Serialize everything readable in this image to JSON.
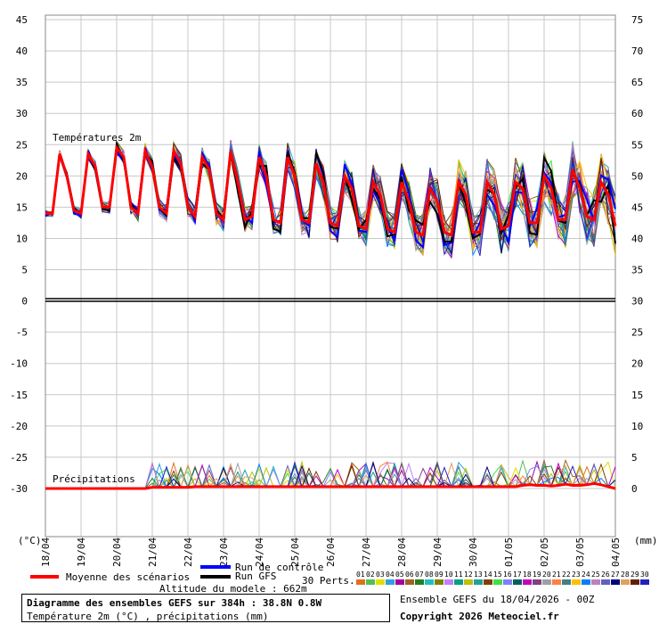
{
  "chart_data": {
    "type": "line",
    "left_axis_ticks": [
      45,
      40,
      35,
      30,
      25,
      20,
      15,
      10,
      5,
      0,
      -5,
      -10,
      -15,
      -20,
      -25,
      -30
    ],
    "right_axis_ticks": [
      75,
      70,
      65,
      60,
      55,
      50,
      45,
      40,
      35,
      30,
      25,
      20,
      15,
      10,
      5,
      0
    ],
    "left_unit": "(°C)",
    "right_unit": "(mm)",
    "x_labels": [
      "18/04",
      "19/04",
      "20/04",
      "21/04",
      "22/04",
      "23/04",
      "24/04",
      "25/04",
      "26/04",
      "27/04",
      "28/04",
      "29/04",
      "30/04",
      "01/05",
      "02/05",
      "03/05",
      "04/05"
    ],
    "temp_label": "Températures 2m",
    "precip_label": "Précipitations",
    "temp_mean": [
      14,
      14,
      23.5,
      20,
      14.5,
      14,
      23.5,
      21.5,
      15,
      15,
      24.5,
      23,
      15,
      14,
      24,
      21.5,
      15,
      14,
      24,
      22,
      15,
      13.5,
      23,
      21,
      14,
      13,
      24,
      19,
      13,
      13.5,
      23,
      20,
      13,
      12.5,
      23,
      20,
      13,
      12.5,
      22,
      19,
      12.5,
      12,
      20,
      18,
      12,
      11.5,
      19,
      17,
      11.5,
      11,
      19,
      16,
      11,
      10.5,
      18,
      16,
      11,
      10.5,
      19,
      17,
      11,
      11,
      19,
      17,
      11.5,
      12,
      19,
      18,
      12.5,
      12.5,
      20,
      18,
      13,
      13,
      21,
      18,
      13.5,
      13,
      19,
      17,
      12
    ],
    "precip_mean": [
      0,
      0,
      0,
      0,
      0,
      0,
      0,
      0,
      0,
      0,
      0,
      0,
      0,
      0,
      0,
      0.2,
      0.2,
      0.2,
      0.2,
      0.2,
      0.2,
      0.3,
      0.3,
      0.3,
      0.3,
      0.3,
      0.3,
      0.3,
      0.3,
      0.3,
      0.3,
      0.3,
      0.3,
      0.3,
      0.3,
      0.3,
      0.3,
      0.3,
      0.3,
      0.3,
      0.3,
      0.3,
      0.3,
      0.3,
      0.3,
      0.3,
      0.3,
      0.3,
      0.3,
      0.3,
      0.3,
      0.3,
      0.3,
      0.3,
      0.3,
      0.3,
      0.3,
      0.3,
      0.3,
      0.3,
      0.3,
      0.3,
      0.3,
      0.3,
      0.3,
      0.3,
      0.3,
      0.5,
      0.6,
      0.5,
      0.5,
      0.4,
      0.5,
      0.7,
      0.5,
      0.5,
      0.6,
      0.8,
      0.6,
      0.3,
      0
    ],
    "ensemble_colors": [
      "#e07020",
      "#50c050",
      "#e0e000",
      "#30a0e0",
      "#a000a0",
      "#a06020",
      "#208020",
      "#20c0c0",
      "#808000",
      "#c080ff",
      "#00a080",
      "#c0c000",
      "#20a0a0",
      "#804000",
      "#40e040",
      "#8080ff",
      "#006060",
      "#c000c0",
      "#804080",
      "#a0a0a0",
      "#ff8040",
      "#408080",
      "#ffc000",
      "#0080ff",
      "#c080c0",
      "#6060c0",
      "#000080",
      "#e0a060",
      "#602000",
      "#2020c0"
    ],
    "legend": {
      "mean": "Moyenne des scénarios",
      "control": "Run de contrôle",
      "gfs": "Run GFS",
      "perts": "30 Perts.",
      "pert_numbers": [
        "01",
        "02",
        "03",
        "04",
        "05",
        "06",
        "07",
        "08",
        "09",
        "10",
        "11",
        "12",
        "13",
        "14",
        "15",
        "16",
        "17",
        "18",
        "19",
        "20",
        "21",
        "22",
        "23",
        "24",
        "25",
        "26",
        "27",
        "28",
        "29",
        "30"
      ],
      "altitude": "Altitude du modele : 662m"
    }
  },
  "info": {
    "line1": "Diagramme des ensembles GEFS sur 384h : 38.8N 0.8W",
    "line2": "Température 2m (°C) , précipitations (mm)",
    "ensemble_date": "Ensemble GEFS du 18/04/2026 - 00Z",
    "copyright": "Copyright 2026 Meteociel.fr"
  }
}
